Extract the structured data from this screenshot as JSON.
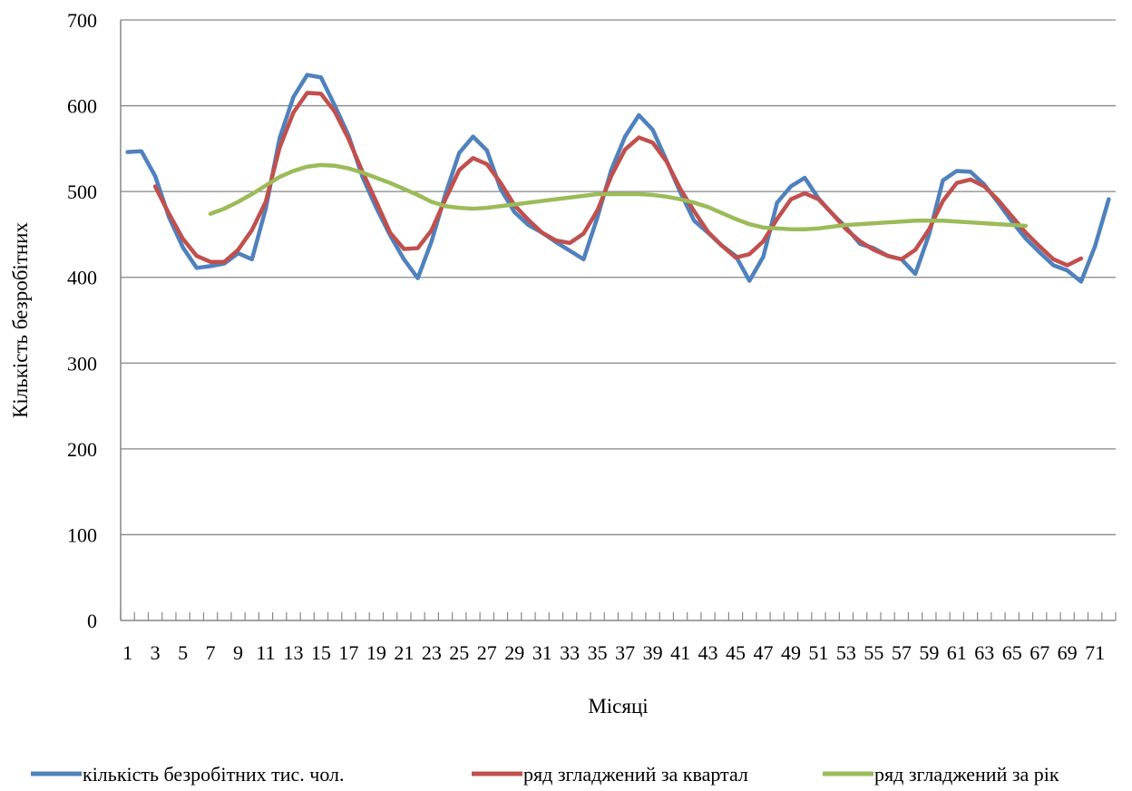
{
  "chart_data": {
    "type": "line",
    "xlabel": "Місяці",
    "ylabel": "Кількість безробітних",
    "ylim": [
      0,
      700
    ],
    "y_ticks": [
      "0",
      "100",
      "200",
      "300",
      "400",
      "500",
      "600",
      "700"
    ],
    "x_tick_labels": [
      "1",
      "3",
      "5",
      "7",
      "9",
      "11",
      "13",
      "15",
      "17",
      "19",
      "21",
      "23",
      "25",
      "27",
      "29",
      "31",
      "33",
      "35",
      "37",
      "39",
      "41",
      "43",
      "45",
      "47",
      "49",
      "51",
      "53",
      "55",
      "57",
      "59",
      "61",
      "63",
      "65",
      "67",
      "69",
      "71"
    ],
    "grid": "horizontal",
    "legend_position": "bottom",
    "x": [
      1,
      2,
      3,
      4,
      5,
      6,
      7,
      8,
      9,
      10,
      11,
      12,
      13,
      14,
      15,
      16,
      17,
      18,
      19,
      20,
      21,
      22,
      23,
      24,
      25,
      26,
      27,
      28,
      29,
      30,
      31,
      32,
      33,
      34,
      35,
      36,
      37,
      38,
      39,
      40,
      41,
      42,
      43,
      44,
      45,
      46,
      47,
      48,
      49,
      50,
      51,
      52,
      53,
      54,
      55,
      56,
      57,
      58,
      59,
      60,
      61,
      62,
      63,
      64,
      65,
      66,
      67,
      68,
      69,
      70,
      71,
      72
    ],
    "series": [
      {
        "name": "кількість безробітних тис. чол.",
        "color": "#4F81BD",
        "values": [
          546,
          547,
          518,
          470,
          435,
          411,
          413,
          416,
          428,
          421,
          480,
          562,
          610,
          636,
          633,
          600,
          565,
          517,
          481,
          449,
          421,
          399,
          442,
          497,
          545,
          564,
          548,
          503,
          476,
          461,
          452,
          441,
          431,
          421,
          470,
          525,
          564,
          589,
          572,
          536,
          499,
          466,
          452,
          437,
          425,
          396,
          424,
          487,
          506,
          516,
          492,
          474,
          458,
          439,
          434,
          425,
          421,
          404,
          450,
          513,
          524,
          523,
          508,
          487,
          465,
          445,
          429,
          414,
          408,
          395,
          436,
          491
        ],
        "color_name": "blue"
      },
      {
        "name": "ряд згладжений за квартал",
        "color": "#C0504D",
        "values": [
          null,
          null,
          506,
          474,
          445,
          425,
          418,
          418,
          432,
          455,
          488,
          551,
          592,
          615,
          614,
          593,
          561,
          523,
          488,
          452,
          433,
          434,
          455,
          491,
          525,
          539,
          532,
          510,
          484,
          467,
          452,
          443,
          440,
          451,
          478,
          518,
          549,
          563,
          557,
          535,
          503,
          477,
          453,
          437,
          423,
          427,
          442,
          468,
          491,
          498,
          491,
          474,
          456,
          442,
          432,
          425,
          421,
          432,
          456,
          489,
          510,
          514,
          506,
          490,
          471,
          452,
          436,
          421,
          414,
          422,
          null,
          null
        ]
      },
      {
        "name": "ряд згладжений за рік",
        "color": "#9BBB59",
        "values": [
          null,
          null,
          null,
          null,
          null,
          null,
          474,
          480,
          488,
          497,
          507,
          517,
          524,
          529,
          531,
          530,
          527,
          522,
          516,
          510,
          503,
          496,
          488,
          483,
          481,
          480,
          481,
          483,
          485,
          487,
          489,
          491,
          493,
          495,
          497,
          497,
          497,
          497,
          496,
          494,
          491,
          487,
          482,
          475,
          468,
          462,
          458,
          457,
          456,
          456,
          457,
          459,
          461,
          462,
          463,
          464,
          465,
          466,
          466,
          466,
          465,
          464,
          463,
          462,
          461,
          460,
          null,
          null,
          null,
          null,
          null,
          null
        ]
      }
    ]
  }
}
